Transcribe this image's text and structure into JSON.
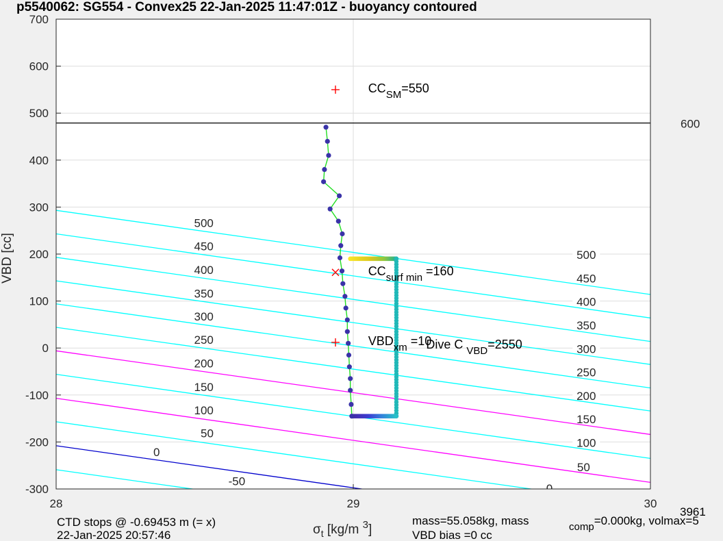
{
  "chart_data": {
    "type": "scatter",
    "title": "p5540062: SG554 - Convex25 22-Jan-2025 11:47:01Z - buoyancy contoured",
    "xlabel": "σt [kg/m 3]",
    "xlabel_parts": {
      "sym": "σ",
      "sub": "t",
      "unit": " [kg/m ",
      "sup": "3",
      "close": "]"
    },
    "ylabel": "VBD [cc]",
    "xlim": [
      28,
      30
    ],
    "ylim": [
      -300,
      700
    ],
    "xticks": [
      "28",
      "29",
      "30"
    ],
    "yticks": [
      "700",
      "600",
      "500",
      "400",
      "300",
      "200",
      "100",
      "0",
      "-100",
      "-200",
      "-300"
    ],
    "grid": true,
    "contours": [
      {
        "level": "-50",
        "color": "#00ffff",
        "y_left": -259,
        "y_right": -438,
        "labels": [
          {
            "text": "-50",
            "x": 28.608,
            "y": -285
          }
        ]
      },
      {
        "level": "0",
        "color": "#0000cd",
        "y_left": -208,
        "y_right": -387,
        "labels": [
          {
            "text": "0",
            "x": 28.338,
            "y": -223
          },
          {
            "text": "0",
            "x": 29.66,
            "y": -300
          }
        ]
      },
      {
        "level": "50",
        "color": "#00ffff",
        "y_left": -157,
        "y_right": -336,
        "labels": [
          {
            "text": "50",
            "x": 28.508,
            "y": -183
          },
          {
            "text": "50",
            "x": 29.775,
            "y": -255
          }
        ]
      },
      {
        "level": "100",
        "color": "#ff00ff",
        "y_left": -107,
        "y_right": -286,
        "labels": [
          {
            "text": "100",
            "x": 28.497,
            "y": -134
          },
          {
            "text": "100",
            "x": 29.784,
            "y": -203
          }
        ]
      },
      {
        "level": "150",
        "color": "#00ffff",
        "y_left": -56,
        "y_right": -235,
        "labels": [
          {
            "text": "150",
            "x": 28.497,
            "y": -84
          },
          {
            "text": "150",
            "x": 29.784,
            "y": -153
          }
        ]
      },
      {
        "level": "200",
        "color": "#ff00ff",
        "y_left": -6,
        "y_right": -184,
        "labels": [
          {
            "text": "200",
            "x": 28.497,
            "y": -34
          },
          {
            "text": "200",
            "x": 29.784,
            "y": -103
          }
        ]
      },
      {
        "level": "250",
        "color": "#00ffff",
        "y_left": 44,
        "y_right": -134,
        "labels": [
          {
            "text": "250",
            "x": 28.497,
            "y": 16
          },
          {
            "text": "250",
            "x": 29.784,
            "y": -53
          }
        ]
      },
      {
        "level": "300",
        "color": "#00ffff",
        "y_left": 94,
        "y_right": -85,
        "labels": [
          {
            "text": "300",
            "x": 28.497,
            "y": 66
          },
          {
            "text": "300",
            "x": 29.784,
            "y": -3
          }
        ]
      },
      {
        "level": "350",
        "color": "#00ffff",
        "y_left": 143,
        "y_right": -35,
        "labels": [
          {
            "text": "350",
            "x": 28.497,
            "y": 115
          },
          {
            "text": "350",
            "x": 29.784,
            "y": 47
          }
        ]
      },
      {
        "level": "400",
        "color": "#00ffff",
        "y_left": 193,
        "y_right": 14,
        "labels": [
          {
            "text": "400",
            "x": 28.497,
            "y": 165
          },
          {
            "text": "400",
            "x": 29.784,
            "y": 97
          }
        ]
      },
      {
        "level": "450",
        "color": "#00ffff",
        "y_left": 243,
        "y_right": 64,
        "labels": [
          {
            "text": "450",
            "x": 28.497,
            "y": 215
          },
          {
            "text": "450",
            "x": 29.784,
            "y": 147
          }
        ]
      },
      {
        "level": "500",
        "color": "#00ffff",
        "y_left": 293,
        "y_right": 114,
        "labels": [
          {
            "text": "500",
            "x": 28.497,
            "y": 265
          },
          {
            "text": "500",
            "x": 29.784,
            "y": 197
          }
        ]
      }
    ],
    "hline": {
      "y": 479,
      "color": "#000000",
      "label": "600"
    },
    "side_label": "3961",
    "profile_points": [
      {
        "x": 28.908,
        "y": 470
      },
      {
        "x": 28.913,
        "y": 440
      },
      {
        "x": 28.917,
        "y": 410
      },
      {
        "x": 28.903,
        "y": 380
      },
      {
        "x": 28.9,
        "y": 354
      },
      {
        "x": 28.953,
        "y": 324
      },
      {
        "x": 28.922,
        "y": 296
      },
      {
        "x": 28.95,
        "y": 270
      },
      {
        "x": 28.963,
        "y": 243
      },
      {
        "x": 28.958,
        "y": 218
      },
      {
        "x": 28.955,
        "y": 192
      },
      {
        "x": 28.962,
        "y": 164
      },
      {
        "x": 28.965,
        "y": 137
      },
      {
        "x": 28.972,
        "y": 110
      },
      {
        "x": 28.975,
        "y": 85
      },
      {
        "x": 28.98,
        "y": 60
      },
      {
        "x": 28.98,
        "y": 35
      },
      {
        "x": 28.983,
        "y": 10
      },
      {
        "x": 28.985,
        "y": -15
      },
      {
        "x": 28.987,
        "y": -40
      },
      {
        "x": 28.99,
        "y": -65
      },
      {
        "x": 28.99,
        "y": -90
      },
      {
        "x": 28.993,
        "y": -120
      },
      {
        "x": 28.995,
        "y": -145
      }
    ],
    "trace_top": {
      "y": 190,
      "x_from": 28.99,
      "x_to": 29.145
    },
    "trace_bottom": {
      "y": -145,
      "x_from": 28.995,
      "x_to": 29.145
    },
    "trace_right": {
      "x": 29.145,
      "y_from": 190,
      "y_to": -145
    },
    "markers": [
      {
        "x": 28.94,
        "y": 550,
        "symbol": "+",
        "color": "#ff0000"
      },
      {
        "x": 28.94,
        "y": 161,
        "symbol": "x",
        "color": "#ff0000"
      },
      {
        "x": 28.94,
        "y": 12,
        "symbol": "+",
        "color": "#ff0000"
      }
    ],
    "annotations": [
      {
        "name": "cc-sm",
        "x": 29.05,
        "y": 550,
        "text": "CC",
        "sub": "SM",
        "after": "=550"
      },
      {
        "name": "cc-surf-min",
        "x": 29.05,
        "y": 161,
        "text": "CC",
        "sub": "surf min",
        "after": " =160"
      },
      {
        "name": "vbd-xm",
        "x": 29.05,
        "y": 12,
        "text": "VBD",
        "sub": "xm",
        "after": " =10"
      },
      {
        "name": "dive-c-vbd",
        "x": 29.245,
        "y": 5,
        "text": "Dive C ",
        "sub": "VBD",
        "after": "=2550"
      }
    ]
  },
  "footer": {
    "ctd_stops": "CTD stops @ -0.69453 m (= x)",
    "timestamp": "22-Jan-2025 20:57:46",
    "mass_line1": "mass=55.058kg, mass",
    "mass_sub": "comp",
    "mass_line1_rest": "=0.000kg, volmax=5",
    "vbd_bias": "VBD bias =0 cc"
  }
}
